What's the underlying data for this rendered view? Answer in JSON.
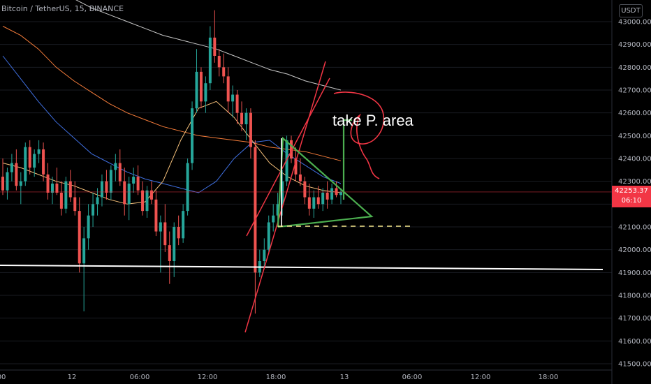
{
  "header": {
    "symbol_line": "Bitcoin / TetherUS, 15, BINANCE",
    "currency_button": "USDT"
  },
  "price_label": {
    "price": "42253.37",
    "countdown": "06:10"
  },
  "colors": {
    "up": "#26a69a",
    "down": "#ef5350",
    "ma_gray": "#c9c9c9",
    "ma_orange": "#f57c3a",
    "ma_blue": "#3f6fe0",
    "ma_yellow": "#f5c07a",
    "trend_red": "#f23645",
    "triangle_green": "#4caf50",
    "support_white": "#ffffff",
    "dash_yellow": "#f5e68a",
    "current_line": "#f23645"
  },
  "chart_data": {
    "type": "candlestick",
    "symbol": "Bitcoin / TetherUS",
    "interval": "15",
    "exchange": "BINANCE",
    "ylim": [
      41500,
      43050
    ],
    "y_ticks": [
      "41500.00",
      "41600.00",
      "41700.00",
      "41800.00",
      "41900.00",
      "42000.00",
      "42100.00",
      "42200.00",
      "42300.00",
      "42400.00",
      "42500.00",
      "42600.00",
      "42700.00",
      "42800.00",
      "42900.00",
      "43000.00"
    ],
    "x_ticks": [
      "18:00",
      "12",
      "06:00",
      "12:00",
      "18:00",
      "13",
      "06:00",
      "12:00",
      "18:00"
    ],
    "last_price": 42253.37,
    "candles": [
      {
        "o": 42320,
        "h": 42400,
        "l": 42240,
        "c": 42260
      },
      {
        "o": 42260,
        "h": 42360,
        "l": 42220,
        "c": 42340
      },
      {
        "o": 42340,
        "h": 42420,
        "l": 42300,
        "c": 42380
      },
      {
        "o": 42380,
        "h": 42440,
        "l": 42260,
        "c": 42280
      },
      {
        "o": 42280,
        "h": 42340,
        "l": 42200,
        "c": 42300
      },
      {
        "o": 42300,
        "h": 42470,
        "l": 42280,
        "c": 42450
      },
      {
        "o": 42450,
        "h": 42480,
        "l": 42330,
        "c": 42360
      },
      {
        "o": 42360,
        "h": 42440,
        "l": 42320,
        "c": 42420
      },
      {
        "o": 42420,
        "h": 42480,
        "l": 42380,
        "c": 42440
      },
      {
        "o": 42440,
        "h": 42470,
        "l": 42300,
        "c": 42330
      },
      {
        "o": 42330,
        "h": 42380,
        "l": 42220,
        "c": 42250
      },
      {
        "o": 42250,
        "h": 42320,
        "l": 42200,
        "c": 42290
      },
      {
        "o": 42290,
        "h": 42360,
        "l": 42240,
        "c": 42250
      },
      {
        "o": 42250,
        "h": 42300,
        "l": 42150,
        "c": 42180
      },
      {
        "o": 42180,
        "h": 42320,
        "l": 42160,
        "c": 42300
      },
      {
        "o": 42300,
        "h": 42350,
        "l": 42210,
        "c": 42230
      },
      {
        "o": 42230,
        "h": 42300,
        "l": 42150,
        "c": 42170
      },
      {
        "o": 42170,
        "h": 42230,
        "l": 41900,
        "c": 41940
      },
      {
        "o": 41940,
        "h": 42100,
        "l": 41730,
        "c": 42050
      },
      {
        "o": 42050,
        "h": 42200,
        "l": 42000,
        "c": 42150
      },
      {
        "o": 42150,
        "h": 42250,
        "l": 42100,
        "c": 42200
      },
      {
        "o": 42200,
        "h": 42270,
        "l": 42150,
        "c": 42230
      },
      {
        "o": 42230,
        "h": 42330,
        "l": 42190,
        "c": 42300
      },
      {
        "o": 42300,
        "h": 42350,
        "l": 42220,
        "c": 42250
      },
      {
        "o": 42250,
        "h": 42370,
        "l": 42220,
        "c": 42350
      },
      {
        "o": 42350,
        "h": 42420,
        "l": 42300,
        "c": 42380
      },
      {
        "o": 42380,
        "h": 42440,
        "l": 42280,
        "c": 42300
      },
      {
        "o": 42300,
        "h": 42360,
        "l": 42150,
        "c": 42200
      },
      {
        "o": 42200,
        "h": 42320,
        "l": 42130,
        "c": 42290
      },
      {
        "o": 42290,
        "h": 42360,
        "l": 42250,
        "c": 42320
      },
      {
        "o": 42320,
        "h": 42370,
        "l": 42240,
        "c": 42260
      },
      {
        "o": 42260,
        "h": 42300,
        "l": 42150,
        "c": 42170
      },
      {
        "o": 42170,
        "h": 42280,
        "l": 42140,
        "c": 42260
      },
      {
        "o": 42260,
        "h": 42300,
        "l": 42200,
        "c": 42220
      },
      {
        "o": 42220,
        "h": 42260,
        "l": 42060,
        "c": 42080
      },
      {
        "o": 42080,
        "h": 42150,
        "l": 41900,
        "c": 42120
      },
      {
        "o": 42120,
        "h": 42200,
        "l": 41990,
        "c": 42020
      },
      {
        "o": 42020,
        "h": 42080,
        "l": 41850,
        "c": 41950
      },
      {
        "o": 41950,
        "h": 42120,
        "l": 41880,
        "c": 42100
      },
      {
        "o": 42100,
        "h": 42150,
        "l": 42020,
        "c": 42050
      },
      {
        "o": 42050,
        "h": 42200,
        "l": 42030,
        "c": 42170
      },
      {
        "o": 42170,
        "h": 42400,
        "l": 42150,
        "c": 42380
      },
      {
        "o": 42380,
        "h": 42650,
        "l": 42350,
        "c": 42620
      },
      {
        "o": 42620,
        "h": 42880,
        "l": 42600,
        "c": 42780
      },
      {
        "o": 42780,
        "h": 42800,
        "l": 42620,
        "c": 42650
      },
      {
        "o": 42650,
        "h": 42760,
        "l": 42600,
        "c": 42730
      },
      {
        "o": 42730,
        "h": 42980,
        "l": 42700,
        "c": 42930
      },
      {
        "o": 42930,
        "h": 43050,
        "l": 42820,
        "c": 42850
      },
      {
        "o": 42850,
        "h": 42880,
        "l": 42760,
        "c": 42800
      },
      {
        "o": 42800,
        "h": 42860,
        "l": 42730,
        "c": 42760
      },
      {
        "o": 42760,
        "h": 42800,
        "l": 42600,
        "c": 42650
      },
      {
        "o": 42650,
        "h": 42720,
        "l": 42580,
        "c": 42680
      },
      {
        "o": 42680,
        "h": 42700,
        "l": 42550,
        "c": 42600
      },
      {
        "o": 42600,
        "h": 42650,
        "l": 42520,
        "c": 42550
      },
      {
        "o": 42550,
        "h": 42620,
        "l": 42480,
        "c": 42600
      },
      {
        "o": 42600,
        "h": 42620,
        "l": 42400,
        "c": 42450
      },
      {
        "o": 42450,
        "h": 42480,
        "l": 41720,
        "c": 41900
      },
      {
        "o": 41900,
        "h": 42000,
        "l": 41880,
        "c": 41950
      },
      {
        "o": 41950,
        "h": 42050,
        "l": 41920,
        "c": 42000
      },
      {
        "o": 42000,
        "h": 42150,
        "l": 41980,
        "c": 42120
      },
      {
        "o": 42120,
        "h": 42200,
        "l": 42080,
        "c": 42150
      },
      {
        "o": 42150,
        "h": 42250,
        "l": 42100,
        "c": 42200
      },
      {
        "o": 42200,
        "h": 42350,
        "l": 42150,
        "c": 42300
      },
      {
        "o": 42300,
        "h": 42500,
        "l": 42280,
        "c": 42480
      },
      {
        "o": 42480,
        "h": 42500,
        "l": 42380,
        "c": 42400
      },
      {
        "o": 42400,
        "h": 42450,
        "l": 42300,
        "c": 42330
      },
      {
        "o": 42330,
        "h": 42400,
        "l": 42280,
        "c": 42300
      },
      {
        "o": 42300,
        "h": 42320,
        "l": 42200,
        "c": 42230
      },
      {
        "o": 42230,
        "h": 42290,
        "l": 42150,
        "c": 42180
      },
      {
        "o": 42180,
        "h": 42260,
        "l": 42140,
        "c": 42230
      },
      {
        "o": 42230,
        "h": 42280,
        "l": 42180,
        "c": 42200
      },
      {
        "o": 42200,
        "h": 42270,
        "l": 42170,
        "c": 42250
      },
      {
        "o": 42250,
        "h": 42300,
        "l": 42180,
        "c": 42220
      },
      {
        "o": 42220,
        "h": 42290,
        "l": 42200,
        "c": 42270
      },
      {
        "o": 42270,
        "h": 42300,
        "l": 42230,
        "c": 42240
      },
      {
        "o": 42240,
        "h": 42270,
        "l": 42200,
        "c": 42253.37
      }
    ],
    "moving_averages": [
      {
        "color_key": "ma_gray",
        "values": [
          43200,
          43180,
          43160,
          43130,
          43100,
          43060,
          43030,
          43000,
          42970,
          42940,
          42920,
          42900,
          42880,
          42850,
          42820,
          42790,
          42770,
          42740,
          42720,
          42700
        ]
      },
      {
        "color_key": "ma_orange",
        "values": [
          42980,
          42940,
          42880,
          42800,
          42740,
          42690,
          42640,
          42600,
          42570,
          42540,
          42520,
          42500,
          42490,
          42480,
          42470,
          42450,
          42440,
          42430,
          42410,
          42390
        ]
      },
      {
        "color_key": "ma_blue",
        "values": [
          42850,
          42750,
          42650,
          42560,
          42490,
          42420,
          42380,
          42340,
          42310,
          42290,
          42270,
          42250,
          42300,
          42400,
          42470,
          42480,
          42420,
          42370,
          42320,
          42290
        ]
      },
      {
        "color_key": "ma_yellow",
        "values": [
          42380,
          42360,
          42330,
          42300,
          42280,
          42250,
          42220,
          42200,
          42210,
          42300,
          42480,
          42620,
          42650,
          42580,
          42480,
          42380,
          42320,
          42280,
          42260,
          42250
        ]
      }
    ],
    "annotations": {
      "text": "take P. area",
      "support_level": 41920,
      "breakout_level": 42100
    }
  }
}
